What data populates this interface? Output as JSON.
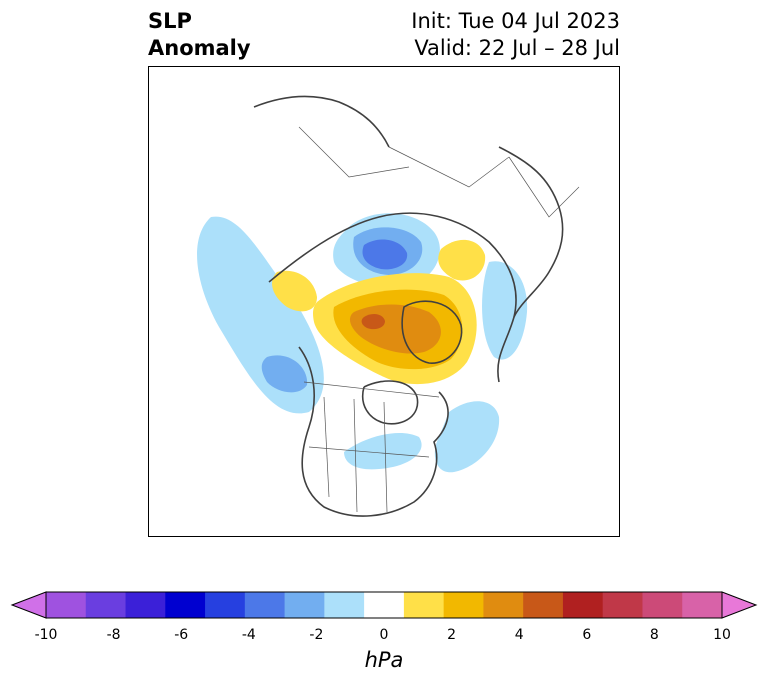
{
  "title": {
    "left_line1": "SLP",
    "left_line2": "Anomaly",
    "right_line1": "Init: Tue 04 Jul 2023",
    "right_line2": "Valid: 22 Jul – 28 Jul"
  },
  "colorbar": {
    "unit": "hPa",
    "min": -10,
    "max": 10,
    "tick_labels": [
      "-10",
      "-8",
      "-6",
      "-4",
      "-2",
      "0",
      "2",
      "4",
      "6",
      "8",
      "10"
    ],
    "colors": [
      "#d070e8",
      "#9f52e0",
      "#6a3ee0",
      "#3b20d8",
      "#0000d0",
      "#2640e0",
      "#4c78e8",
      "#72aef0",
      "#ace0fa",
      "#ffffff",
      "#ffe048",
      "#f2b800",
      "#e08c10",
      "#c85818",
      "#b02020",
      "#c03848",
      "#cc4a78",
      "#d862a8",
      "#e878d8"
    ]
  },
  "map": {
    "projection": "polar stereographic",
    "features": [
      {
        "name": "negative-anomaly-central-arctic",
        "sign": "negative",
        "peak_hPa": -5
      },
      {
        "name": "negative-anomaly-north-pacific",
        "sign": "negative",
        "peak_hPa": -3
      },
      {
        "name": "negative-anomaly-north-atlantic",
        "sign": "negative",
        "peak_hPa": -2
      },
      {
        "name": "negative-anomaly-scandinavia",
        "sign": "negative",
        "peak_hPa": -2
      },
      {
        "name": "positive-anomaly-greenland-canada",
        "sign": "positive",
        "peak_hPa": 6
      },
      {
        "name": "positive-anomaly-siberia",
        "sign": "positive",
        "peak_hPa": 2
      },
      {
        "name": "positive-anomaly-bering",
        "sign": "positive",
        "peak_hPa": 2
      }
    ]
  }
}
